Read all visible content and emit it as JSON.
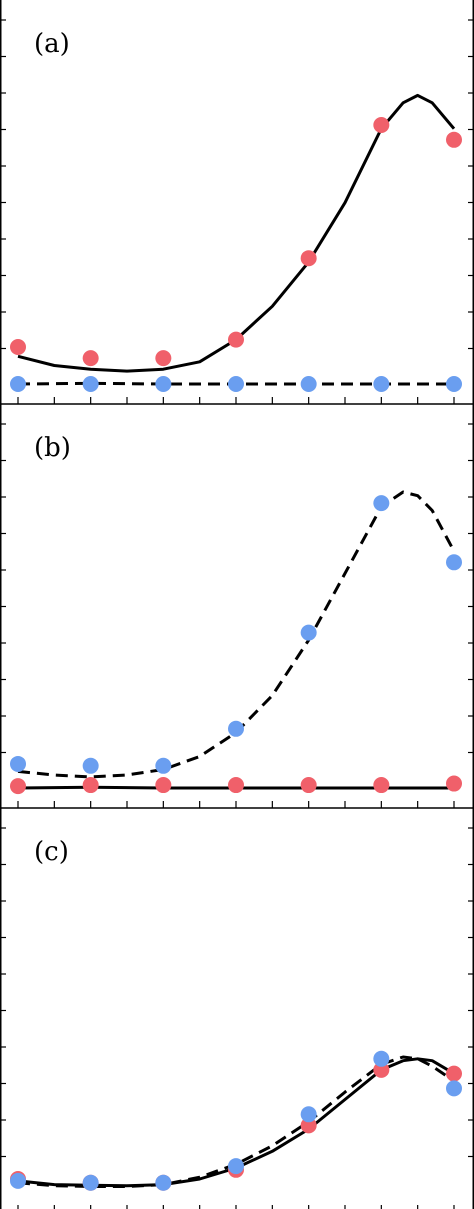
{
  "colors": {
    "red": "#f0606a",
    "blue": "#6a9ef0",
    "line": "#000000"
  },
  "chart_data": [
    {
      "type": "scatter",
      "panel_label": "(a)",
      "x_ticks": 13,
      "y_ticks": 10,
      "series": [
        {
          "color": "red",
          "line_style": "solid",
          "points": [
            [
              0,
              0.1
            ],
            [
              1,
              0.07
            ],
            [
              2,
              0.07
            ],
            [
              3,
              0.12
            ],
            [
              4,
              0.34
            ],
            [
              5,
              0.7
            ],
            [
              6,
              0.66
            ]
          ],
          "curve": [
            [
              0,
              0.075
            ],
            [
              0.5,
              0.05
            ],
            [
              1,
              0.04
            ],
            [
              1.5,
              0.035
            ],
            [
              2,
              0.04
            ],
            [
              2.5,
              0.06
            ],
            [
              3,
              0.12
            ],
            [
              3.5,
              0.21
            ],
            [
              4,
              0.33
            ],
            [
              4.5,
              0.49
            ],
            [
              5,
              0.69
            ],
            [
              5.3,
              0.76
            ],
            [
              5.5,
              0.78
            ],
            [
              5.7,
              0.76
            ],
            [
              6,
              0.69
            ]
          ]
        },
        {
          "color": "blue",
          "line_style": "dashed",
          "points": [
            [
              0,
              0.0
            ],
            [
              1,
              0.0
            ],
            [
              2,
              0.0
            ],
            [
              3,
              0.0
            ],
            [
              4,
              0.0
            ],
            [
              5,
              0.0
            ],
            [
              6,
              0.0
            ]
          ],
          "curve": [
            [
              0,
              0.0
            ],
            [
              1,
              0.002
            ],
            [
              2,
              0.0
            ],
            [
              3,
              0.0
            ],
            [
              4,
              0.0
            ],
            [
              5,
              0.0
            ],
            [
              6,
              0.0
            ]
          ]
        }
      ]
    },
    {
      "type": "scatter",
      "panel_label": "(b)",
      "x_ticks": 13,
      "y_ticks": 10,
      "series": [
        {
          "color": "blue",
          "line_style": "dashed",
          "points": [
            [
              0,
              0.065
            ],
            [
              1,
              0.06
            ],
            [
              2,
              0.06
            ],
            [
              3,
              0.16
            ],
            [
              4,
              0.42
            ],
            [
              5,
              0.77
            ],
            [
              6,
              0.61
            ]
          ],
          "curve": [
            [
              0,
              0.045
            ],
            [
              0.5,
              0.035
            ],
            [
              1,
              0.03
            ],
            [
              1.5,
              0.035
            ],
            [
              2,
              0.05
            ],
            [
              2.5,
              0.085
            ],
            [
              3,
              0.15
            ],
            [
              3.5,
              0.25
            ],
            [
              4,
              0.4
            ],
            [
              4.5,
              0.58
            ],
            [
              5,
              0.76
            ],
            [
              5.3,
              0.8
            ],
            [
              5.5,
              0.79
            ],
            [
              5.7,
              0.75
            ],
            [
              6,
              0.64
            ]
          ]
        },
        {
          "color": "red",
          "line_style": "solid",
          "points": [
            [
              0,
              0.005
            ],
            [
              1,
              0.008
            ],
            [
              2,
              0.008
            ],
            [
              3,
              0.008
            ],
            [
              4,
              0.008
            ],
            [
              5,
              0.008
            ],
            [
              6,
              0.012
            ]
          ],
          "curve": [
            [
              0,
              0.0
            ],
            [
              1,
              0.002
            ],
            [
              2,
              0.0
            ],
            [
              3,
              0.0
            ],
            [
              4,
              0.0
            ],
            [
              5,
              0.0
            ],
            [
              6,
              0.0
            ]
          ]
        }
      ]
    },
    {
      "type": "scatter",
      "panel_label": "(c)",
      "x_ticks": 13,
      "y_ticks": 10,
      "series": [
        {
          "color": "red",
          "line_style": "solid",
          "points": [
            [
              0,
              0.035
            ],
            [
              1,
              0.025
            ],
            [
              2,
              0.025
            ],
            [
              3,
              0.06
            ],
            [
              4,
              0.18
            ],
            [
              5,
              0.33
            ],
            [
              6,
              0.32
            ]
          ],
          "curve": [
            [
              0,
              0.03
            ],
            [
              0.5,
              0.02
            ],
            [
              1,
              0.018
            ],
            [
              1.5,
              0.017
            ],
            [
              2,
              0.02
            ],
            [
              2.5,
              0.035
            ],
            [
              3,
              0.065
            ],
            [
              3.5,
              0.11
            ],
            [
              4,
              0.17
            ],
            [
              4.5,
              0.25
            ],
            [
              5,
              0.33
            ],
            [
              5.3,
              0.355
            ],
            [
              5.5,
              0.36
            ],
            [
              5.7,
              0.355
            ],
            [
              6,
              0.32
            ]
          ]
        },
        {
          "color": "blue",
          "line_style": "dashed",
          "points": [
            [
              0,
              0.03
            ],
            [
              1,
              0.025
            ],
            [
              2,
              0.025
            ],
            [
              3,
              0.07
            ],
            [
              4,
              0.21
            ],
            [
              5,
              0.36
            ],
            [
              6,
              0.28
            ]
          ],
          "curve": [
            [
              0,
              0.025
            ],
            [
              0.5,
              0.017
            ],
            [
              1,
              0.015
            ],
            [
              1.5,
              0.015
            ],
            [
              2,
              0.02
            ],
            [
              2.5,
              0.04
            ],
            [
              3,
              0.075
            ],
            [
              3.5,
              0.125
            ],
            [
              4,
              0.19
            ],
            [
              4.5,
              0.27
            ],
            [
              5,
              0.345
            ],
            [
              5.3,
              0.365
            ],
            [
              5.5,
              0.36
            ],
            [
              5.7,
              0.34
            ],
            [
              6,
              0.3
            ]
          ]
        }
      ]
    }
  ]
}
